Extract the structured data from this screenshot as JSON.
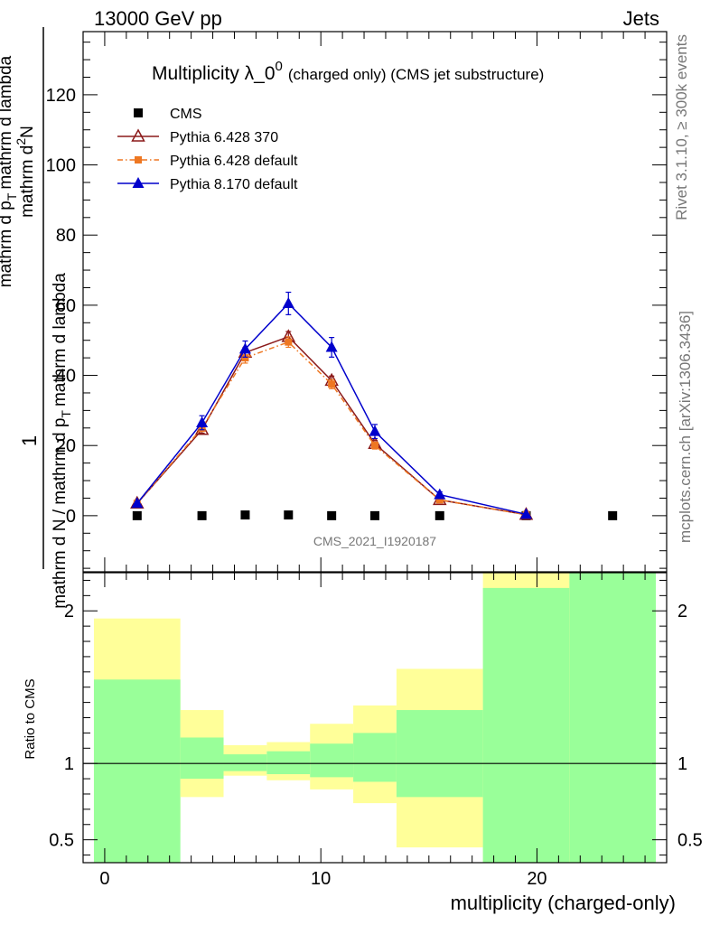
{
  "header": {
    "left": "13000 GeV pp",
    "right": "Jets"
  },
  "side_labels": {
    "rivet": "Rivet 3.1.10, ≥ 300k events",
    "mcplots": "mcplots.cern.ch [arXiv:1306.3436]"
  },
  "chart_data": [
    {
      "type": "scatter",
      "title": "Multiplicity λ_0",
      "title_sup": "0",
      "title_suffix": "(charged only) (CMS jet substructure)",
      "watermark": "CMS_2021_I1920187",
      "ylabel": {
        "prefactor": "1",
        "denominator": "mathrm d N / mathrm d p",
        "denominator_sub": "T",
        "denominator_tail": "mathrm d lambda",
        "numerator": "mathrm d",
        "numerator_sup": "2",
        "numerator_tail": "N",
        "numerator_2": "mathrm d p",
        "numerator_2_sub": "T",
        "numerator_2_tail": "mathrm d lambda"
      },
      "xlim": [
        -1,
        26
      ],
      "ylim": [
        -16,
        138
      ],
      "yticks": [
        0,
        20,
        40,
        60,
        80,
        100,
        120
      ],
      "legend_position": "top-left",
      "series": [
        {
          "name": "CMS",
          "color": "#000000",
          "marker": "square",
          "line": "none",
          "x": [
            1.5,
            4.5,
            6.5,
            8.5,
            10.5,
            12.5,
            15.5,
            19.5,
            23.5
          ],
          "y": [
            0,
            0,
            0.2,
            0.2,
            0,
            0,
            0,
            0,
            0
          ]
        },
        {
          "name": "Pythia 6.428 370",
          "color": "#8b1a1a",
          "marker": "triangle-open",
          "line": "solid",
          "x": [
            1.5,
            4.5,
            6.5,
            8.5,
            10.5,
            12.5,
            15.5,
            19.5
          ],
          "y": [
            3.5,
            24.5,
            46.5,
            51,
            38.5,
            20.5,
            4.5,
            0.3
          ],
          "yerr": [
            0.3,
            1,
            1.5,
            1.5,
            1.3,
            1,
            0.5,
            0.1
          ]
        },
        {
          "name": "Pythia 6.428 default",
          "color": "#ee7722",
          "marker": "square-small",
          "line": "dashdot",
          "x": [
            1.5,
            4.5,
            6.5,
            8.5,
            10.5,
            12.5,
            15.5,
            19.5
          ],
          "y": [
            3.5,
            25,
            45,
            49.5,
            37.5,
            20,
            4.5,
            0.3
          ],
          "yerr": [
            0.3,
            1,
            1.5,
            1.5,
            1.3,
            1,
            0.5,
            0.1
          ]
        },
        {
          "name": "Pythia 8.170 default",
          "color": "#0000cc",
          "marker": "triangle-filled",
          "line": "solid",
          "x": [
            1.5,
            4.5,
            6.5,
            8.5,
            10.5,
            12.5,
            15.5,
            19.5
          ],
          "y": [
            3.5,
            26.5,
            47.5,
            60.5,
            48,
            24,
            6,
            0.4
          ],
          "yerr": [
            0.4,
            2,
            2.3,
            3.2,
            2.8,
            2,
            0.8,
            0.2
          ]
        }
      ]
    },
    {
      "type": "area",
      "ylabel": "Ratio to CMS",
      "xlabel": "multiplicity (charged-only)",
      "xlim": [
        -1,
        26
      ],
      "ylim": [
        0.35,
        2.25
      ],
      "yticks": [
        0.5,
        1,
        2
      ],
      "xticks": [
        0,
        10,
        20
      ],
      "reference_line": 1,
      "band_colors": {
        "inner": "#99ff99",
        "outer": "#ffff99"
      },
      "bins": [
        {
          "x0": -0.5,
          "x1": 3.5,
          "outer": [
            0.55,
            1.95
          ],
          "inner": [
            0.35,
            1.55
          ]
        },
        {
          "x0": 3.5,
          "x1": 5.5,
          "outer": [
            0.78,
            1.35
          ],
          "inner": [
            0.9,
            1.17
          ]
        },
        {
          "x0": 5.5,
          "x1": 7.5,
          "outer": [
            0.92,
            1.12
          ],
          "inner": [
            0.95,
            1.06
          ]
        },
        {
          "x0": 7.5,
          "x1": 9.5,
          "outer": [
            0.89,
            1.14
          ],
          "inner": [
            0.93,
            1.08
          ]
        },
        {
          "x0": 9.5,
          "x1": 11.5,
          "outer": [
            0.83,
            1.26
          ],
          "inner": [
            0.91,
            1.13
          ]
        },
        {
          "x0": 11.5,
          "x1": 13.5,
          "outer": [
            0.74,
            1.38
          ],
          "inner": [
            0.88,
            1.2
          ]
        },
        {
          "x0": 13.5,
          "x1": 17.5,
          "outer": [
            0.45,
            1.62
          ],
          "inner": [
            0.78,
            1.35
          ]
        },
        {
          "x0": 17.5,
          "x1": 21.5,
          "outer": [
            0.35,
            2.25
          ],
          "inner": [
            0.35,
            2.15
          ]
        },
        {
          "x0": 21.5,
          "x1": 25.5,
          "outer": [
            0.35,
            2.25
          ],
          "inner": [
            0.35,
            2.25
          ]
        }
      ]
    }
  ]
}
